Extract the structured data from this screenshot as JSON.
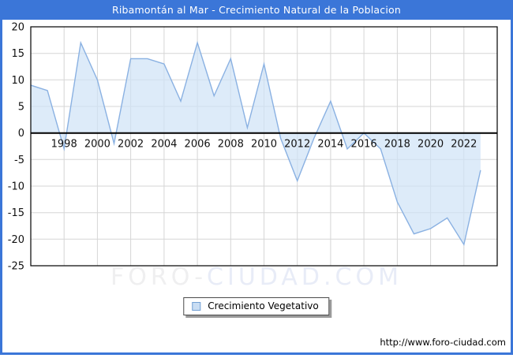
{
  "window": {
    "title": "Ribamontán al Mar - Crecimiento Natural de la Poblacion"
  },
  "chart_data": {
    "type": "area",
    "title": "Ribamontán al Mar - Crecimiento Natural de la Poblacion",
    "x": [
      1996,
      1997,
      1998,
      1999,
      2000,
      2001,
      2002,
      2003,
      2004,
      2005,
      2006,
      2007,
      2008,
      2009,
      2010,
      2011,
      2012,
      2013,
      2014,
      2015,
      2016,
      2017,
      2018,
      2019,
      2020,
      2021,
      2022,
      2023
    ],
    "series": [
      {
        "name": "Crecimiento Vegetativo",
        "values": [
          9,
          8,
          -3,
          17,
          10,
          -2,
          14,
          14,
          13,
          6,
          17,
          7,
          14,
          1,
          13,
          -1,
          -9,
          -1,
          6,
          -3,
          0,
          -3,
          -13,
          -19,
          -18,
          -16,
          -21,
          -7
        ]
      }
    ],
    "xlim": [
      1996,
      2024
    ],
    "ylim": [
      -25,
      20
    ],
    "x_ticks": [
      1998,
      2000,
      2002,
      2004,
      2006,
      2008,
      2010,
      2012,
      2014,
      2016,
      2018,
      2020,
      2022
    ],
    "y_ticks": [
      20,
      15,
      10,
      5,
      0,
      -5,
      -10,
      -15,
      -20,
      -25
    ],
    "grid": true,
    "baseline": 0,
    "legend_position": "bottom-center",
    "colors": {
      "header": "#3b76d8",
      "line": "#8ab1e2",
      "fill": "#cfe2f6",
      "grid": "#d6d6d6",
      "axis": "#000000",
      "plot_border": "#000000",
      "tick_text": "#111111"
    }
  },
  "watermark": {
    "left": "FORO-",
    "right": "CIUDAD.COM"
  },
  "footer": {
    "url": "http://www.foro-ciudad.com"
  }
}
